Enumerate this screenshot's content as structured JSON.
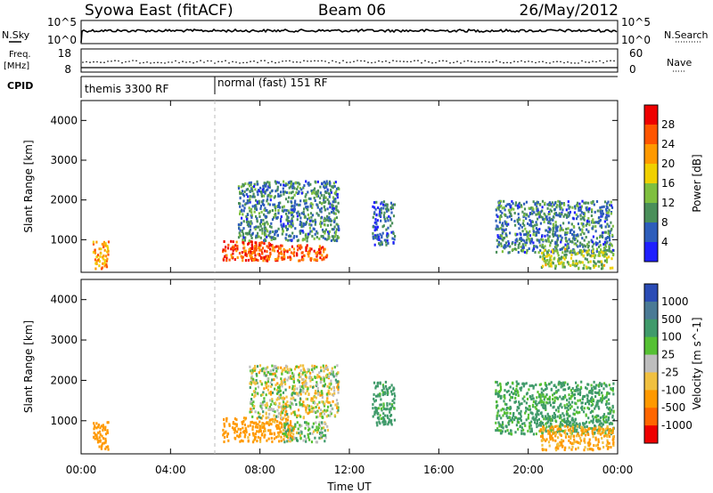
{
  "header": {
    "station": "Syowa East (fitACF)",
    "beam": "Beam 06",
    "date": "26/May/2012"
  },
  "strip_labels": {
    "nsky": "N.Sky",
    "nsky_max": "10^5",
    "nsky_min": "10^0",
    "nsearch": "N.Search",
    "nsearch_max": "10^5",
    "nsearch_min": "10^0",
    "freq": "Freq.",
    "freq_unit": "[MHz]",
    "freq_max": "18",
    "freq_min": "8",
    "nave": "Nave",
    "nave_max": "60",
    "nave_min": "0",
    "cpid": "CPID",
    "cpid_mode_1": "themis 3300 RF",
    "cpid_mode_2": "normal (fast) 151 RF"
  },
  "x_axis": {
    "label": "Time UT",
    "ticks": [
      "00:00",
      "04:00",
      "08:00",
      "12:00",
      "16:00",
      "20:00",
      "00:00"
    ]
  },
  "colors": {
    "power": [
      "#1f1fff",
      "#2d5dbb",
      "#4a8f5a",
      "#7fbf3f",
      "#f0d000",
      "#ff9900",
      "#ff5500",
      "#ee0000"
    ],
    "velocity": [
      "#2a4bb5",
      "#4a7a95",
      "#3f9a6a",
      "#55c033",
      "#bdbdbd",
      "#f0c040",
      "#ff9900",
      "#ff6600",
      "#ee0000"
    ]
  },
  "chart_data": [
    {
      "type": "heatmap",
      "panel": "power",
      "ylabel": "Slant Range [km]",
      "xlabel": "",
      "x_range_hours": [
        0,
        24
      ],
      "ylim": [
        180,
        4500
      ],
      "yticks": [
        "1000",
        "2000",
        "3000",
        "4000"
      ],
      "colorbar": {
        "label": "Power [dB]",
        "ticks": [
          "4",
          "8",
          "12",
          "16",
          "20",
          "24",
          "28"
        ],
        "range": [
          0,
          30
        ]
      },
      "echo_regions": [
        {
          "t_start": 0.5,
          "t_end": 1.2,
          "range_start": 300,
          "range_end": 1000,
          "value": 20
        },
        {
          "t_start": 6.3,
          "t_end": 8.5,
          "range_start": 500,
          "range_end": 1000,
          "value": 26
        },
        {
          "t_start": 7.5,
          "t_end": 11.0,
          "range_start": 500,
          "range_end": 900,
          "value": 24
        },
        {
          "t_start": 7.0,
          "t_end": 11.5,
          "range_start": 1000,
          "range_end": 2500,
          "value": 8
        },
        {
          "t_start": 13.0,
          "t_end": 14.0,
          "range_start": 900,
          "range_end": 2000,
          "value": 6
        },
        {
          "t_start": 18.5,
          "t_end": 23.8,
          "range_start": 700,
          "range_end": 2000,
          "value": 8
        },
        {
          "t_start": 20.5,
          "t_end": 23.8,
          "range_start": 300,
          "range_end": 800,
          "value": 14
        }
      ]
    },
    {
      "type": "heatmap",
      "panel": "velocity",
      "ylabel": "Slant Range [km]",
      "xlabel": "Time UT",
      "x_range_hours": [
        0,
        24
      ],
      "ylim": [
        180,
        4500
      ],
      "yticks": [
        "1000",
        "2000",
        "3000",
        "4000"
      ],
      "colorbar": {
        "label": "Velocity [m s^-1]",
        "ticks": [
          "1000",
          "500",
          "100",
          "25",
          "-25",
          "-100",
          "-500",
          "-1000"
        ]
      },
      "echo_regions": [
        {
          "t_start": 0.5,
          "t_end": 1.2,
          "range_start": 300,
          "range_end": 1000,
          "value": -300
        },
        {
          "t_start": 6.3,
          "t_end": 9.5,
          "range_start": 500,
          "range_end": 1100,
          "value": -200
        },
        {
          "t_start": 9.0,
          "t_end": 11.0,
          "range_start": 500,
          "range_end": 1000,
          "value": 50
        },
        {
          "t_start": 7.5,
          "t_end": 11.5,
          "range_start": 1100,
          "range_end": 2400,
          "value": 0
        },
        {
          "t_start": 13.0,
          "t_end": 14.0,
          "range_start": 900,
          "range_end": 2000,
          "value": 200
        },
        {
          "t_start": 18.5,
          "t_end": 23.8,
          "range_start": 700,
          "range_end": 2000,
          "value": 150
        },
        {
          "t_start": 20.5,
          "t_end": 23.8,
          "range_start": 300,
          "range_end": 900,
          "value": -150
        }
      ]
    }
  ]
}
